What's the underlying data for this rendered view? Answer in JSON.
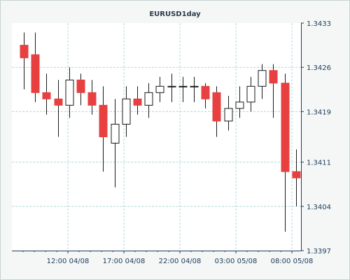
{
  "chart_data": {
    "type": "candlestick",
    "title": "EURUSD1day",
    "ylim": [
      1.3397,
      1.3433
    ],
    "y_ticks": [
      "1.3433",
      "1.3426",
      "1.3419",
      "1.3411",
      "1.3404",
      "1.3397"
    ],
    "x_ticks": [
      "12:00 04/08",
      "17:00 04/08",
      "22:00 04/08",
      "03:00 05/08",
      "08:00 05/08"
    ],
    "grid": true,
    "colors": {
      "bear": "#e84040",
      "bull": "#ffffff",
      "outline": "#1a1a1a",
      "grid": "#a8dcd8"
    },
    "candles": [
      {
        "open": 1.34295,
        "high": 1.34315,
        "low": 1.34225,
        "close": 1.34275
      },
      {
        "open": 1.3428,
        "high": 1.34315,
        "low": 1.34205,
        "close": 1.3422
      },
      {
        "open": 1.3422,
        "high": 1.3425,
        "low": 1.34185,
        "close": 1.3421
      },
      {
        "open": 1.3421,
        "high": 1.3424,
        "low": 1.3415,
        "close": 1.342
      },
      {
        "open": 1.342,
        "high": 1.3426,
        "low": 1.3418,
        "close": 1.3424
      },
      {
        "open": 1.3424,
        "high": 1.3425,
        "low": 1.342,
        "close": 1.3422
      },
      {
        "open": 1.3422,
        "high": 1.3424,
        "low": 1.34185,
        "close": 1.342
      },
      {
        "open": 1.342,
        "high": 1.3423,
        "low": 1.34095,
        "close": 1.3415
      },
      {
        "open": 1.3414,
        "high": 1.3421,
        "low": 1.3407,
        "close": 1.3417
      },
      {
        "open": 1.3417,
        "high": 1.3423,
        "low": 1.3415,
        "close": 1.3421
      },
      {
        "open": 1.3421,
        "high": 1.3423,
        "low": 1.34185,
        "close": 1.342
      },
      {
        "open": 1.342,
        "high": 1.34235,
        "low": 1.3418,
        "close": 1.3422
      },
      {
        "open": 1.3422,
        "high": 1.34245,
        "low": 1.34205,
        "close": 1.3423
      },
      {
        "open": 1.3423,
        "high": 1.3425,
        "low": 1.34205,
        "close": 1.3423
      },
      {
        "open": 1.3423,
        "high": 1.34245,
        "low": 1.34205,
        "close": 1.3423
      },
      {
        "open": 1.3423,
        "high": 1.34245,
        "low": 1.34205,
        "close": 1.3423
      },
      {
        "open": 1.3423,
        "high": 1.34235,
        "low": 1.34195,
        "close": 1.3421
      },
      {
        "open": 1.3422,
        "high": 1.3423,
        "low": 1.3415,
        "close": 1.34175
      },
      {
        "open": 1.34175,
        "high": 1.34215,
        "low": 1.3416,
        "close": 1.34195
      },
      {
        "open": 1.34195,
        "high": 1.3423,
        "low": 1.3418,
        "close": 1.34205
      },
      {
        "open": 1.34205,
        "high": 1.34245,
        "low": 1.3419,
        "close": 1.3423
      },
      {
        "open": 1.3423,
        "high": 1.34265,
        "low": 1.3421,
        "close": 1.34255
      },
      {
        "open": 1.34255,
        "high": 1.34265,
        "low": 1.3418,
        "close": 1.34235
      },
      {
        "open": 1.34235,
        "high": 1.3425,
        "low": 1.34,
        "close": 1.34095
      },
      {
        "open": 1.34095,
        "high": 1.3413,
        "low": 1.3404,
        "close": 1.34085
      }
    ]
  }
}
